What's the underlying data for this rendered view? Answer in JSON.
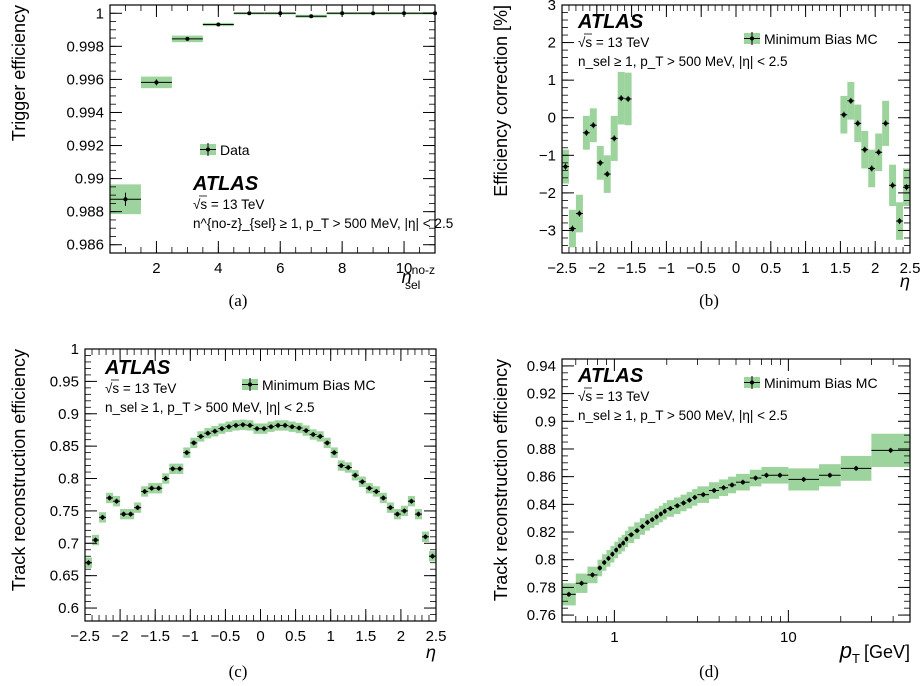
{
  "colors": {
    "band": "#9dd49d",
    "marker": "#000000",
    "frame": "#000000"
  },
  "chart_data": [
    {
      "panel": "(a)",
      "type": "scatter",
      "ylabel": "Trigger efficiency",
      "xlabel_main": "n",
      "xlabel_sup": "no-z",
      "xlabel_sub": "sel",
      "xlim": [
        0.5,
        11
      ],
      "ylim": [
        0.9855,
        1.0005
      ],
      "xticks": [
        2,
        4,
        6,
        8,
        10
      ],
      "yticks": [
        0.986,
        0.988,
        0.99,
        0.992,
        0.994,
        0.996,
        0.998,
        1
      ],
      "ytick_labels": [
        "0.986",
        "0.988",
        "0.99",
        "0.992",
        "0.994",
        "0.996",
        "0.998",
        "1"
      ],
      "legend": [
        "Data"
      ],
      "legend_position": "center",
      "atlas": "ATLAS",
      "energy": "√s = 13 TeV",
      "selection": "n^{no-z}_{sel} ≥ 1, p_T > 500 MeV, |η| < 2.5",
      "points": [
        {
          "x": 1,
          "xlo": 0.5,
          "xhi": 1.5,
          "y": 0.98875,
          "yerr": 0.0004,
          "band": 0.0009
        },
        {
          "x": 2,
          "xlo": 1.5,
          "xhi": 2.5,
          "y": 0.99582,
          "yerr": 0.00018,
          "band": 0.00035
        },
        {
          "x": 3,
          "xlo": 2.5,
          "xhi": 3.5,
          "y": 0.99845,
          "yerr": 0.0001,
          "band": 0.0002
        },
        {
          "x": 4,
          "xlo": 3.5,
          "xhi": 4.5,
          "y": 0.99932,
          "yerr": 6e-05,
          "band": 0.0001
        },
        {
          "x": 5,
          "xlo": 4.5,
          "xhi": 5.5,
          "y": 1.0,
          "yerr": 2e-05,
          "band": 7e-05
        },
        {
          "x": 6,
          "xlo": 5.5,
          "xhi": 6.5,
          "y": 1.0,
          "yerr": 2e-05,
          "band": 7e-05
        },
        {
          "x": 7,
          "xlo": 6.5,
          "xhi": 7.5,
          "y": 0.99982,
          "yerr": 3e-05,
          "band": 9e-05
        },
        {
          "x": 8,
          "xlo": 7.5,
          "xhi": 8.5,
          "y": 1.0,
          "yerr": 2e-05,
          "band": 7e-05
        },
        {
          "x": 9,
          "xlo": 8.5,
          "xhi": 9.5,
          "y": 1.0,
          "yerr": 2e-05,
          "band": 7e-05
        },
        {
          "x": 10,
          "xlo": 9.5,
          "xhi": 10.5,
          "y": 1.0,
          "yerr": 2e-05,
          "band": 7e-05
        },
        {
          "x": 11,
          "xlo": 10.5,
          "xhi": 11,
          "y": 1.0,
          "yerr": 2e-05,
          "band": 7e-05
        }
      ]
    },
    {
      "panel": "(b)",
      "type": "scatter",
      "ylabel": "Efficiency correction [%]",
      "xlabel": "η",
      "xlim": [
        -2.5,
        2.5
      ],
      "ylim": [
        -3.6,
        3
      ],
      "xticks": [
        -2.5,
        -2,
        -1.5,
        -1,
        -0.5,
        0,
        0.5,
        1,
        1.5,
        2,
        2.5
      ],
      "xtick_labels": [
        "−2.5",
        "−2",
        "−1.5",
        "−1",
        "−0.5",
        "0",
        "0.5",
        "1",
        "1.5",
        "2",
        "2.5"
      ],
      "yticks": [
        -3,
        -2,
        -1,
        0,
        1,
        2,
        3
      ],
      "ytick_labels": [
        "−3",
        "−2",
        "−1",
        "0",
        "1",
        "2",
        "3"
      ],
      "legend": [
        "Minimum Bias MC"
      ],
      "legend_position": "top-right",
      "atlas": "ATLAS",
      "energy": "√s = 13 TeV",
      "selection": "n_sel ≥ 1, p_T > 500 MeV, |η| < 2.5",
      "bin_width": 0.1,
      "x": [
        -2.45,
        -2.35,
        -2.25,
        -2.15,
        -2.05,
        -1.95,
        -1.85,
        -1.75,
        -1.65,
        -1.55,
        -1.45,
        -1.35,
        1.35,
        1.45,
        1.55,
        1.65,
        1.75,
        1.85,
        1.95,
        2.05,
        2.15,
        2.25,
        2.35,
        2.45
      ],
      "y": [
        -1.3,
        -2.95,
        -2.55,
        -0.4,
        -0.2,
        -1.2,
        -1.5,
        -0.55,
        0.52,
        0.5,
        null,
        null,
        null,
        null,
        0.08,
        0.45,
        -0.15,
        -0.85,
        -1.35,
        -0.92,
        -0.15,
        -1.8,
        -2.75,
        -1.85
      ],
      "band": [
        0.45,
        0.5,
        0.5,
        0.45,
        0.45,
        0.45,
        0.5,
        0.6,
        0.7,
        0.7,
        null,
        null,
        null,
        null,
        0.5,
        0.5,
        0.5,
        0.5,
        0.5,
        0.5,
        0.6,
        0.55,
        0.5,
        0.5
      ]
    },
    {
      "panel": "(c)",
      "type": "scatter",
      "ylabel": "Track reconstruction efficiency",
      "xlabel": "η",
      "xlim": [
        -2.5,
        2.5
      ],
      "ylim": [
        0.58,
        1.0
      ],
      "xticks": [
        -2.5,
        -2,
        -1.5,
        -1,
        -0.5,
        0,
        0.5,
        1,
        1.5,
        2,
        2.5
      ],
      "xtick_labels": [
        "−2.5",
        "−2",
        "−1.5",
        "−1",
        "−0.5",
        "0",
        "0.5",
        "1",
        "1.5",
        "2",
        "2.5"
      ],
      "yticks": [
        0.6,
        0.65,
        0.7,
        0.75,
        0.8,
        0.85,
        0.9,
        0.95,
        1
      ],
      "ytick_labels": [
        "0.6",
        "0.65",
        "0.7",
        "0.75",
        "0.8",
        "0.85",
        "0.9",
        "0.95",
        "1"
      ],
      "legend": [
        "Minimum Bias MC"
      ],
      "legend_position": "top-right",
      "atlas": "ATLAS",
      "energy": "√s = 13 TeV",
      "selection": "n_sel ≥ 1, p_T > 500 MeV, |η| < 2.5",
      "bin_width": 0.1,
      "x": [
        -2.45,
        -2.35,
        -2.25,
        -2.15,
        -2.05,
        -1.95,
        -1.85,
        -1.75,
        -1.65,
        -1.55,
        -1.45,
        -1.35,
        -1.25,
        -1.15,
        -1.05,
        -0.95,
        -0.85,
        -0.75,
        -0.65,
        -0.55,
        -0.45,
        -0.35,
        -0.25,
        -0.15,
        -0.05,
        0.05,
        0.15,
        0.25,
        0.35,
        0.45,
        0.55,
        0.65,
        0.75,
        0.85,
        0.95,
        1.05,
        1.15,
        1.25,
        1.35,
        1.45,
        1.55,
        1.65,
        1.75,
        1.85,
        1.95,
        2.05,
        2.15,
        2.25,
        2.35,
        2.45
      ],
      "y": [
        0.67,
        0.705,
        0.74,
        0.77,
        0.765,
        0.745,
        0.745,
        0.755,
        0.78,
        0.785,
        0.785,
        0.8,
        0.815,
        0.815,
        0.84,
        0.855,
        0.865,
        0.87,
        0.873,
        0.877,
        0.88,
        0.882,
        0.883,
        0.882,
        0.877,
        0.877,
        0.88,
        0.882,
        0.882,
        0.88,
        0.878,
        0.874,
        0.868,
        0.865,
        0.855,
        0.84,
        0.82,
        0.817,
        0.805,
        0.795,
        0.785,
        0.78,
        0.77,
        0.755,
        0.745,
        0.75,
        0.765,
        0.745,
        0.71,
        0.68
      ],
      "band": 0.008
    },
    {
      "panel": "(d)",
      "type": "scatter",
      "ylabel": "Track reconstruction efficiency",
      "xlabel_main": "p",
      "xlabel_sub": "T",
      "xlabel_unit": "[GeV]",
      "xscale": "log",
      "xlim": [
        0.5,
        50
      ],
      "ylim": [
        0.755,
        0.945
      ],
      "xticks": [
        1,
        10
      ],
      "xtick_labels": [
        "1",
        "10"
      ],
      "yticks": [
        0.76,
        0.78,
        0.8,
        0.82,
        0.84,
        0.86,
        0.88,
        0.9,
        0.92,
        0.94
      ],
      "ytick_labels": [
        "0.76",
        "0.78",
        "0.8",
        "0.82",
        "0.84",
        "0.86",
        "0.88",
        "0.9",
        "0.92",
        "0.94"
      ],
      "legend": [
        "Minimum Bias MC"
      ],
      "legend_position": "top-right",
      "atlas": "ATLAS",
      "energy": "√s = 13 TeV",
      "selection": "n_sel ≥ 1, p_T > 500 MeV, |η| < 2.5",
      "bins": [
        {
          "lo": 0.5,
          "hi": 0.6,
          "y": 0.775,
          "band": 0.008
        },
        {
          "lo": 0.6,
          "hi": 0.7,
          "y": 0.783,
          "band": 0.007
        },
        {
          "lo": 0.7,
          "hi": 0.8,
          "y": 0.789,
          "band": 0.006
        },
        {
          "lo": 0.8,
          "hi": 0.85,
          "y": 0.794,
          "band": 0.006
        },
        {
          "lo": 0.85,
          "hi": 0.9,
          "y": 0.798,
          "band": 0.006
        },
        {
          "lo": 0.9,
          "hi": 0.95,
          "y": 0.801,
          "band": 0.006
        },
        {
          "lo": 0.95,
          "hi": 1.0,
          "y": 0.804,
          "band": 0.006
        },
        {
          "lo": 1.0,
          "hi": 1.05,
          "y": 0.807,
          "band": 0.006
        },
        {
          "lo": 1.05,
          "hi": 1.1,
          "y": 0.81,
          "band": 0.006
        },
        {
          "lo": 1.1,
          "hi": 1.15,
          "y": 0.812,
          "band": 0.006
        },
        {
          "lo": 1.15,
          "hi": 1.2,
          "y": 0.815,
          "band": 0.006
        },
        {
          "lo": 1.2,
          "hi": 1.3,
          "y": 0.818,
          "band": 0.006
        },
        {
          "lo": 1.3,
          "hi": 1.4,
          "y": 0.821,
          "band": 0.006
        },
        {
          "lo": 1.4,
          "hi": 1.5,
          "y": 0.824,
          "band": 0.006
        },
        {
          "lo": 1.5,
          "hi": 1.6,
          "y": 0.827,
          "band": 0.006
        },
        {
          "lo": 1.6,
          "hi": 1.7,
          "y": 0.829,
          "band": 0.006
        },
        {
          "lo": 1.7,
          "hi": 1.8,
          "y": 0.831,
          "band": 0.006
        },
        {
          "lo": 1.8,
          "hi": 1.9,
          "y": 0.833,
          "band": 0.006
        },
        {
          "lo": 1.9,
          "hi": 2.0,
          "y": 0.835,
          "band": 0.006
        },
        {
          "lo": 2.0,
          "hi": 2.2,
          "y": 0.837,
          "band": 0.006
        },
        {
          "lo": 2.2,
          "hi": 2.4,
          "y": 0.839,
          "band": 0.006
        },
        {
          "lo": 2.4,
          "hi": 2.6,
          "y": 0.841,
          "band": 0.006
        },
        {
          "lo": 2.6,
          "hi": 2.8,
          "y": 0.843,
          "band": 0.006
        },
        {
          "lo": 2.8,
          "hi": 3.0,
          "y": 0.845,
          "band": 0.006
        },
        {
          "lo": 3.0,
          "hi": 3.5,
          "y": 0.847,
          "band": 0.006
        },
        {
          "lo": 3.5,
          "hi": 4.0,
          "y": 0.85,
          "band": 0.006
        },
        {
          "lo": 4.0,
          "hi": 4.5,
          "y": 0.852,
          "band": 0.006
        },
        {
          "lo": 4.5,
          "hi": 5.0,
          "y": 0.854,
          "band": 0.006
        },
        {
          "lo": 5.0,
          "hi": 6.0,
          "y": 0.856,
          "band": 0.006
        },
        {
          "lo": 6.0,
          "hi": 7.0,
          "y": 0.859,
          "band": 0.006
        },
        {
          "lo": 7.0,
          "hi": 8.0,
          "y": 0.861,
          "band": 0.006
        },
        {
          "lo": 8.0,
          "hi": 10.0,
          "y": 0.861,
          "band": 0.006
        },
        {
          "lo": 10.0,
          "hi": 15.0,
          "y": 0.858,
          "band": 0.008
        },
        {
          "lo": 15.0,
          "hi": 20.0,
          "y": 0.861,
          "band": 0.008
        },
        {
          "lo": 20.0,
          "hi": 30.0,
          "y": 0.866,
          "band": 0.009
        },
        {
          "lo": 30.0,
          "hi": 50.0,
          "y": 0.879,
          "band": 0.012
        }
      ]
    }
  ],
  "captions": [
    "(a)",
    "(b)",
    "(c)",
    "(d)"
  ]
}
